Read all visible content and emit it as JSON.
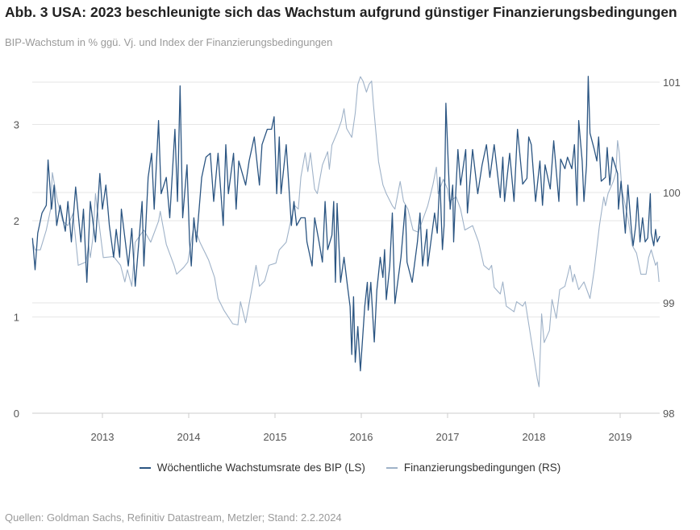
{
  "title": "Abb. 3 USA: 2023 beschleunigte sich das Wachstum aufgrund günstiger Finanzierungsbedingungen",
  "subtitle": "BIP-Wachstum in % ggü. Vj. und Index der Finanzierungsbedingungen",
  "source": "Quellen: Goldman Sachs, Refinitiv Datastream, Metzler; Stand: 2.2.2024",
  "chart_data": {
    "type": "line",
    "grid": true,
    "legend_position": "bottom",
    "x_ticks": [
      "2013",
      "2014",
      "2015",
      "2016",
      "2017",
      "2018",
      "2019"
    ],
    "xlim": [
      2012.19,
      2019.46
    ],
    "y_left": {
      "ticks": [
        "0",
        "1",
        "2",
        "3"
      ],
      "lim": [
        0,
        3.5
      ]
    },
    "y_right": {
      "ticks": [
        "98",
        "99",
        "100",
        "101"
      ],
      "lim": [
        98,
        101.05
      ]
    },
    "series": [
      {
        "name": "Wöchentliche Wachstumsrate des BIP (LS)",
        "axis": "left",
        "color": "#2b5582",
        "x": [
          2012.19,
          2012.22,
          2012.25,
          2012.3,
          2012.35,
          2012.37,
          2012.41,
          2012.44,
          2012.47,
          2012.51,
          2012.57,
          2012.6,
          2012.64,
          2012.69,
          2012.75,
          2012.78,
          2012.82,
          2012.86,
          2012.92,
          2012.97,
          2013.0,
          2013.04,
          2013.08,
          2013.13,
          2013.16,
          2013.2,
          2013.22,
          2013.3,
          2013.34,
          2013.38,
          2013.46,
          2013.48,
          2013.53,
          2013.57,
          2013.6,
          2013.65,
          2013.68,
          2013.74,
          2013.78,
          2013.84,
          2013.87,
          2013.9,
          2013.93,
          2013.98,
          2014.01,
          2014.03,
          2014.06,
          2014.09,
          2014.15,
          2014.2,
          2014.25,
          2014.29,
          2014.34,
          2014.4,
          2014.43,
          2014.46,
          2014.52,
          2014.55,
          2014.58,
          2014.66,
          2014.7,
          2014.76,
          2014.82,
          2014.85,
          2014.91,
          2014.96,
          2014.99,
          2015.02,
          2015.05,
          2015.07,
          2015.13,
          2015.19,
          2015.22,
          2015.25,
          2015.3,
          2015.35,
          2015.37,
          2015.43,
          2015.46,
          2015.51,
          2015.55,
          2015.58,
          2015.61,
          2015.66,
          2015.68,
          2015.7,
          2015.72,
          2015.76,
          2015.8,
          2015.84,
          2015.87,
          2015.89,
          2015.91,
          2015.93,
          2015.96,
          2015.99,
          2016.04,
          2016.07,
          2016.08,
          2016.11,
          2016.15,
          2016.18,
          2016.22,
          2016.25,
          2016.27,
          2016.29,
          2016.33,
          2016.36,
          2016.39,
          2016.46,
          2016.51,
          2016.53,
          2016.59,
          2016.65,
          2016.68,
          2016.71,
          2016.76,
          2016.77,
          2016.85,
          2016.88,
          2016.91,
          2016.94,
          2016.96,
          2016.98,
          2017.01,
          2017.03,
          2017.06,
          2017.07,
          2017.09,
          2017.12,
          2017.15,
          2017.21,
          2017.23,
          2017.29,
          2017.35,
          2017.4,
          2017.45,
          2017.49,
          2017.54,
          2017.61,
          2017.64,
          2017.66,
          2017.72,
          2017.77,
          2017.81,
          2017.87,
          2017.92,
          2017.94,
          2017.97,
          2018.02,
          2018.07,
          2018.1,
          2018.13,
          2018.19,
          2018.23,
          2018.29,
          2018.31,
          2018.36,
          2018.39,
          2018.44,
          2018.47,
          2018.5,
          2018.52,
          2018.56,
          2018.58,
          2018.61,
          2018.63,
          2018.65,
          2018.7,
          2018.73,
          2018.75,
          2018.78,
          2018.83,
          2018.85,
          2018.88,
          2018.91,
          2018.97,
          2018.98,
          2019.01,
          2019.06,
          2019.09,
          2019.13,
          2019.15,
          2019.18,
          2019.2,
          2019.23,
          2019.26,
          2019.29,
          2019.32,
          2019.35,
          2019.36,
          2019.39,
          2019.41,
          2019.43,
          2019.46
        ],
        "y": [
          1.82,
          1.49,
          1.87,
          2.08,
          2.16,
          2.63,
          2.12,
          2.37,
          1.95,
          2.16,
          1.89,
          2.2,
          1.78,
          2.35,
          1.78,
          2.12,
          1.36,
          2.2,
          1.78,
          2.49,
          2.12,
          2.37,
          1.95,
          1.62,
          1.91,
          1.62,
          2.12,
          1.53,
          1.92,
          1.32,
          2.2,
          1.53,
          2.45,
          2.7,
          2.12,
          3.04,
          2.28,
          2.45,
          2.03,
          2.95,
          2.2,
          3.4,
          2.03,
          2.58,
          1.78,
          1.53,
          2.03,
          1.78,
          2.45,
          2.66,
          2.7,
          2.2,
          2.7,
          1.95,
          2.79,
          2.28,
          2.7,
          2.12,
          2.62,
          2.37,
          2.62,
          2.87,
          2.37,
          2.79,
          2.95,
          2.95,
          3.08,
          2.28,
          2.87,
          2.28,
          2.79,
          1.95,
          2.2,
          1.95,
          2.03,
          2.03,
          1.78,
          1.53,
          2.03,
          1.78,
          1.57,
          2.2,
          1.7,
          1.85,
          2.2,
          1.36,
          2.18,
          1.36,
          1.62,
          1.32,
          1.11,
          0.61,
          1.21,
          0.53,
          0.9,
          0.44,
          1.11,
          1.36,
          1.07,
          1.36,
          0.74,
          1.28,
          1.62,
          1.41,
          1.7,
          1.18,
          1.53,
          2.08,
          1.14,
          1.62,
          2.16,
          1.57,
          1.36,
          1.78,
          2.08,
          1.53,
          1.91,
          1.53,
          2.08,
          1.87,
          2.45,
          1.7,
          1.95,
          3.22,
          2.54,
          2.12,
          2.37,
          1.78,
          2.2,
          2.74,
          2.37,
          2.74,
          2.08,
          2.74,
          2.28,
          2.58,
          2.79,
          2.45,
          2.79,
          2.24,
          2.66,
          2.2,
          2.7,
          2.2,
          2.95,
          2.38,
          2.44,
          2.87,
          2.79,
          2.2,
          2.62,
          2.16,
          2.58,
          2.33,
          2.83,
          2.2,
          2.64,
          2.54,
          2.66,
          2.54,
          2.79,
          2.16,
          3.04,
          2.62,
          2.2,
          2.58,
          3.5,
          2.91,
          2.74,
          2.62,
          2.87,
          2.41,
          2.45,
          2.76,
          2.37,
          2.66,
          2.49,
          2.12,
          2.41,
          1.87,
          2.37,
          1.91,
          1.74,
          1.95,
          2.24,
          1.78,
          2.03,
          1.78,
          1.82,
          2.28,
          1.87,
          1.74,
          1.91,
          1.78,
          1.84
        ]
      },
      {
        "name": "Finanzierungsbedingungen (RS)",
        "axis": "right",
        "color": "#9fb2c8",
        "x": [
          2012.19,
          2012.22,
          2012.28,
          2012.35,
          2012.4,
          2012.42,
          2012.48,
          2012.54,
          2012.6,
          2012.66,
          2012.72,
          2012.81,
          2012.84,
          2012.86,
          2012.89,
          2012.92,
          2012.94,
          2013.01,
          2013.13,
          2013.21,
          2013.26,
          2013.29,
          2013.34,
          2013.38,
          2013.48,
          2013.56,
          2013.65,
          2013.67,
          2013.74,
          2013.83,
          2013.86,
          2013.94,
          2013.99,
          2014.06,
          2014.13,
          2014.23,
          2014.3,
          2014.34,
          2014.41,
          2014.51,
          2014.57,
          2014.6,
          2014.66,
          2014.73,
          2014.78,
          2014.82,
          2014.88,
          2014.93,
          2015.01,
          2015.05,
          2015.13,
          2015.19,
          2015.23,
          2015.27,
          2015.3,
          2015.35,
          2015.38,
          2015.41,
          2015.46,
          2015.49,
          2015.55,
          2015.61,
          2015.63,
          2015.66,
          2015.72,
          2015.77,
          2015.8,
          2015.83,
          2015.89,
          2015.93,
          2015.96,
          2015.99,
          2016.02,
          2016.06,
          2016.09,
          2016.12,
          2016.14,
          2016.2,
          2016.25,
          2016.29,
          2016.36,
          2016.39,
          2016.45,
          2016.49,
          2016.54,
          2016.6,
          2016.66,
          2016.72,
          2016.77,
          2016.83,
          2016.87,
          2016.89,
          2016.95,
          2017.0,
          2017.02,
          2017.1,
          2017.15,
          2017.2,
          2017.29,
          2017.36,
          2017.42,
          2017.48,
          2017.51,
          2017.54,
          2017.61,
          2017.64,
          2017.68,
          2017.77,
          2017.8,
          2017.87,
          2017.9,
          2017.93,
          2017.98,
          2018.04,
          2018.06,
          2018.07,
          2018.09,
          2018.12,
          2018.18,
          2018.21,
          2018.26,
          2018.3,
          2018.36,
          2018.42,
          2018.45,
          2018.47,
          2018.52,
          2018.58,
          2018.65,
          2018.7,
          2018.76,
          2018.81,
          2018.83,
          2018.86,
          2018.92,
          2018.95,
          2018.97,
          2018.99,
          2019.02,
          2019.09,
          2019.14,
          2019.19,
          2019.24,
          2019.3,
          2019.33,
          2019.36,
          2019.41,
          2019.43,
          2019.45
        ],
        "y": [
          99.55,
          99.48,
          99.48,
          99.66,
          99.85,
          100.18,
          99.92,
          99.74,
          99.7,
          99.81,
          99.34,
          99.37,
          99.52,
          99.41,
          99.59,
          99.99,
          99.85,
          99.41,
          99.42,
          99.34,
          99.19,
          99.3,
          99.15,
          99.55,
          99.66,
          99.55,
          99.74,
          99.83,
          99.53,
          99.34,
          99.26,
          99.32,
          99.37,
          99.7,
          99.55,
          99.39,
          99.23,
          99.04,
          98.93,
          98.81,
          98.8,
          99.01,
          98.82,
          99.12,
          99.34,
          99.15,
          99.2,
          99.34,
          99.36,
          99.48,
          99.55,
          99.77,
          99.88,
          99.85,
          100.14,
          100.36,
          100.19,
          100.36,
          100.03,
          99.99,
          100.25,
          100.37,
          100.21,
          100.43,
          100.54,
          100.65,
          100.76,
          100.58,
          100.5,
          100.72,
          100.98,
          101.05,
          101.01,
          100.91,
          100.98,
          101.01,
          100.8,
          100.28,
          100.07,
          99.99,
          99.88,
          99.85,
          100.1,
          99.92,
          99.85,
          99.66,
          99.64,
          99.77,
          99.88,
          100.07,
          100.23,
          99.99,
          100.12,
          100.03,
          99.92,
          99.96,
          99.85,
          99.66,
          99.7,
          99.55,
          99.34,
          99.3,
          99.34,
          99.14,
          99.08,
          99.19,
          98.97,
          98.92,
          99.01,
          98.97,
          99.01,
          98.86,
          98.61,
          98.31,
          98.24,
          98.46,
          98.9,
          98.64,
          98.75,
          99.03,
          98.86,
          99.12,
          99.15,
          99.34,
          99.19,
          99.26,
          99.12,
          99.19,
          99.04,
          99.3,
          99.7,
          99.96,
          99.88,
          99.99,
          100.1,
          100.18,
          100.47,
          100.36,
          100.03,
          99.77,
          99.52,
          99.45,
          99.26,
          99.26,
          99.41,
          99.48,
          99.34,
          99.37,
          99.19
        ]
      }
    ]
  }
}
